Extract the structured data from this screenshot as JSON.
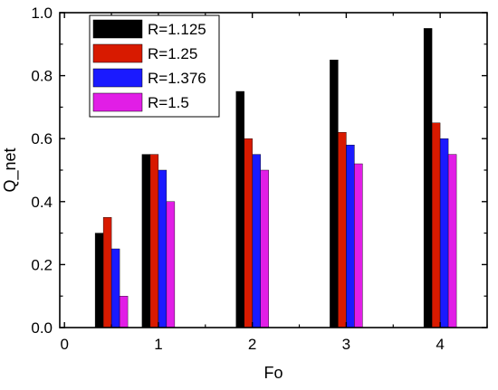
{
  "chart_data": {
    "type": "bar",
    "xlabel": "Fo",
    "ylabel": "Q_net",
    "xlim": [
      -0.05,
      4.5
    ],
    "ylim": [
      0.0,
      1.0
    ],
    "xticks": [
      0,
      1,
      2,
      3,
      4
    ],
    "yticks": [
      0.0,
      0.2,
      0.4,
      0.6,
      0.8,
      1.0
    ],
    "xtick_labels": [
      "0",
      "1",
      "2",
      "3",
      "4"
    ],
    "ytick_labels": [
      "0.0",
      "0.2",
      "0.4",
      "0.6",
      "0.8",
      "1.0"
    ],
    "categories": [
      0.5,
      1,
      2,
      3,
      4
    ],
    "series": [
      {
        "name": "R=1.125",
        "color": "#000000",
        "values": [
          0.3,
          0.55,
          0.75,
          0.85,
          0.95
        ]
      },
      {
        "name": "R=1.25",
        "color": "#d81a00",
        "values": [
          0.35,
          0.55,
          0.6,
          0.62,
          0.65
        ]
      },
      {
        "name": "R=1.376",
        "color": "#1a1aff",
        "values": [
          0.25,
          0.5,
          0.55,
          0.58,
          0.6
        ]
      },
      {
        "name": "R=1.5",
        "color": "#e11ee6",
        "values": [
          0.1,
          0.4,
          0.5,
          0.52,
          0.55
        ]
      }
    ],
    "legend_position": "top-left",
    "grid": false
  }
}
